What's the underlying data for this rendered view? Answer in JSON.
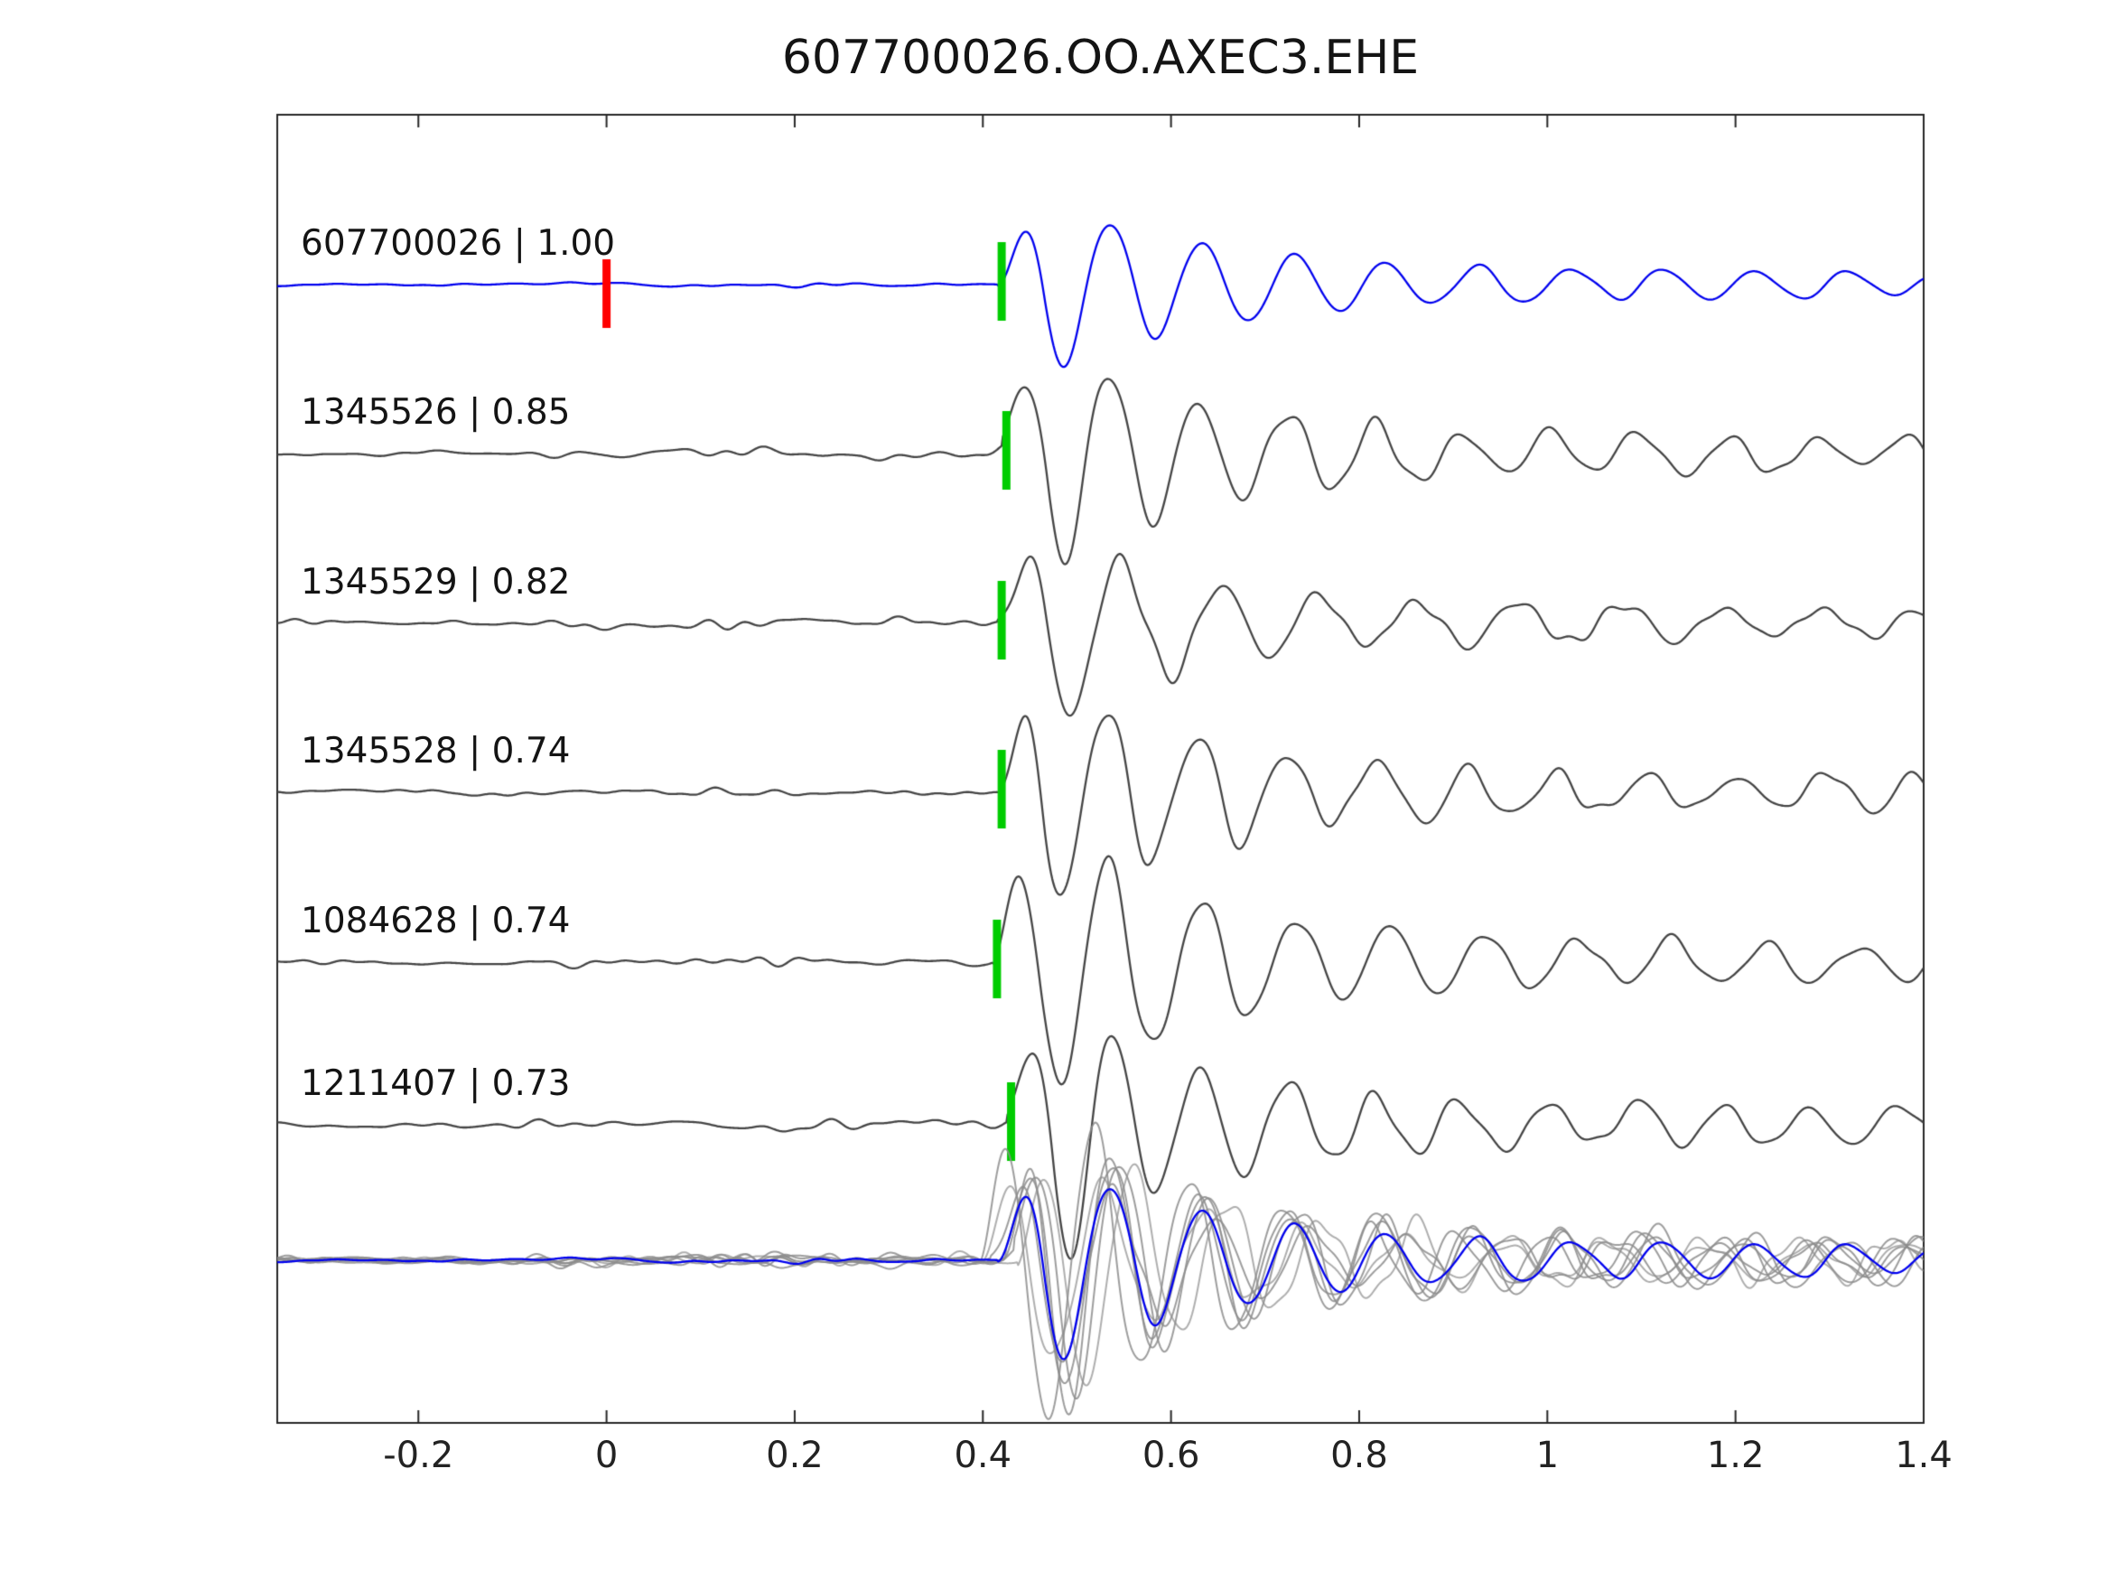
{
  "chart_data": {
    "type": "line",
    "title": "607700026.OO.AXEC3.EHE",
    "xlabel": "",
    "ylabel": "",
    "xlim": [
      -0.35,
      1.4
    ],
    "xticks": [
      -0.2,
      0,
      0.2,
      0.4,
      0.6,
      0.8,
      1,
      1.2,
      1.4
    ],
    "grid": false,
    "legend": false,
    "colors": {
      "template_trace": "#0000ee",
      "detection_trace": "#444444",
      "overlay_trace": "#8c8c8c",
      "pick_marker": "#00cc00",
      "reference_marker": "#ff0000",
      "axis": "#262626",
      "text": "#141414"
    },
    "traces": [
      {
        "label": "607700026 | 1.00",
        "event_id": "607700026",
        "correlation": 1.0,
        "color": "#0000ee",
        "pick_time": 0.42,
        "reference_time": 0
      },
      {
        "label": "1345526 | 0.85",
        "event_id": "1345526",
        "correlation": 0.85,
        "color": "#444444",
        "pick_time": 0.425
      },
      {
        "label": "1345529 | 0.82",
        "event_id": "1345529",
        "correlation": 0.82,
        "color": "#444444",
        "pick_time": 0.42
      },
      {
        "label": "1345528 | 0.74",
        "event_id": "1345528",
        "correlation": 0.74,
        "color": "#444444",
        "pick_time": 0.42
      },
      {
        "label": "1084628 | 0.74",
        "event_id": "1084628",
        "correlation": 0.74,
        "color": "#444444",
        "pick_time": 0.415
      },
      {
        "label": "1211407 | 0.73",
        "event_id": "1211407",
        "correlation": 0.73,
        "color": "#444444",
        "pick_time": 0.43
      }
    ],
    "overlay_row": {
      "description": "all traces superimposed",
      "trace_ids": [
        "607700026",
        "1345526",
        "1345529",
        "1345528",
        "1084628",
        "1211407"
      ]
    }
  }
}
